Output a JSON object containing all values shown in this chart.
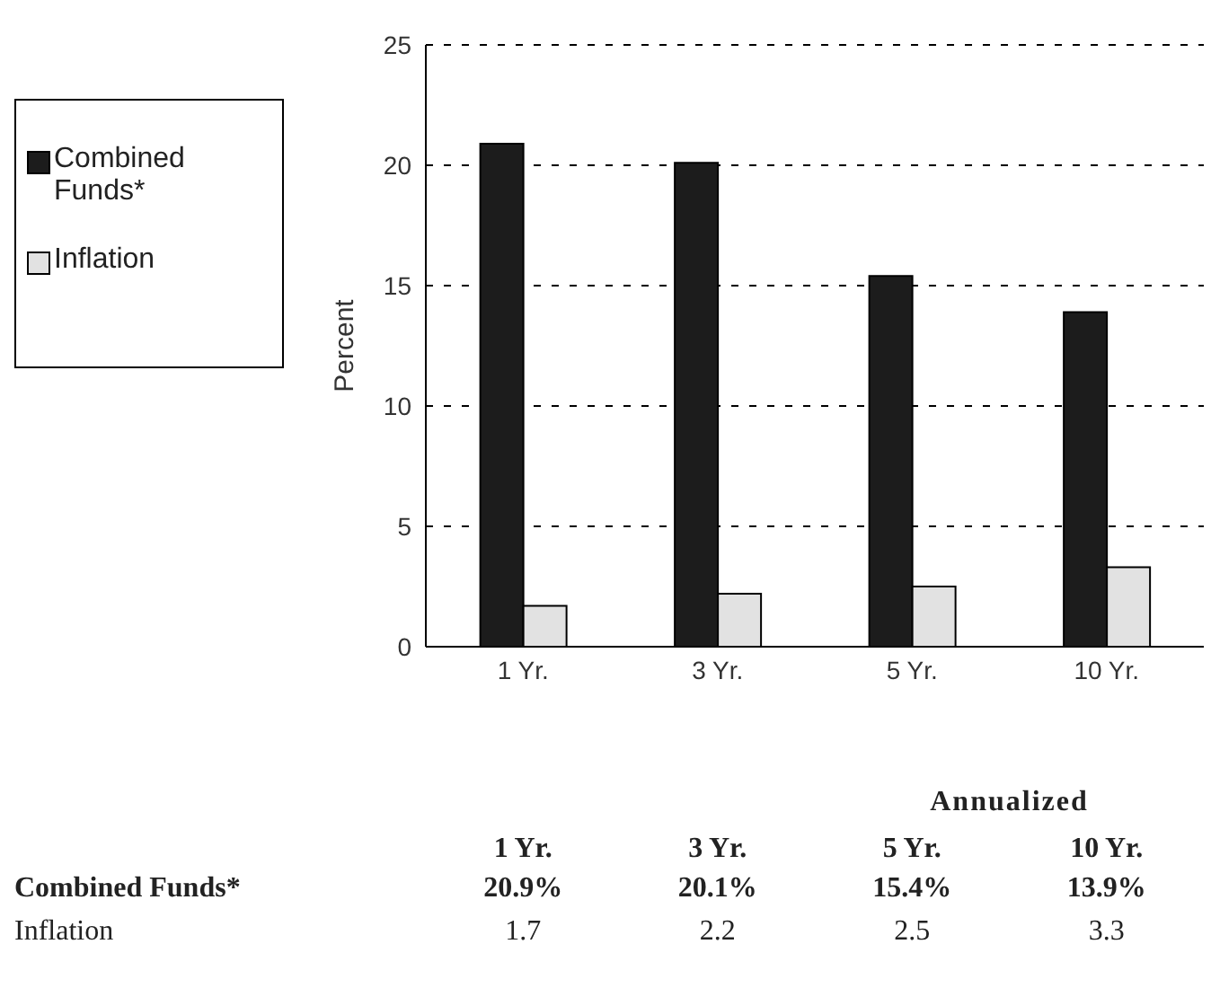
{
  "chart_data": {
    "type": "bar",
    "categories": [
      "1 Yr.",
      "3 Yr.",
      "5 Yr.",
      "10 Yr."
    ],
    "ylabel": "Percent",
    "ylim": [
      0,
      25
    ],
    "yticks": [
      0,
      5,
      10,
      15,
      20,
      25
    ],
    "grid": "y",
    "legend": "left",
    "annotations": [
      "Annualized"
    ],
    "series": [
      {
        "name": "Combined Funds*",
        "color": "#1c1c1c",
        "values": [
          20.9,
          20.1,
          15.4,
          13.9
        ],
        "value_labels": [
          "20.9%",
          "20.1%",
          "15.4%",
          "13.9%"
        ]
      },
      {
        "name": "Inflation",
        "color": "#e2e2e2",
        "values": [
          1.7,
          2.2,
          2.5,
          3.3
        ],
        "value_labels": [
          "1.7",
          "2.2",
          "2.5",
          "3.3"
        ]
      }
    ]
  }
}
